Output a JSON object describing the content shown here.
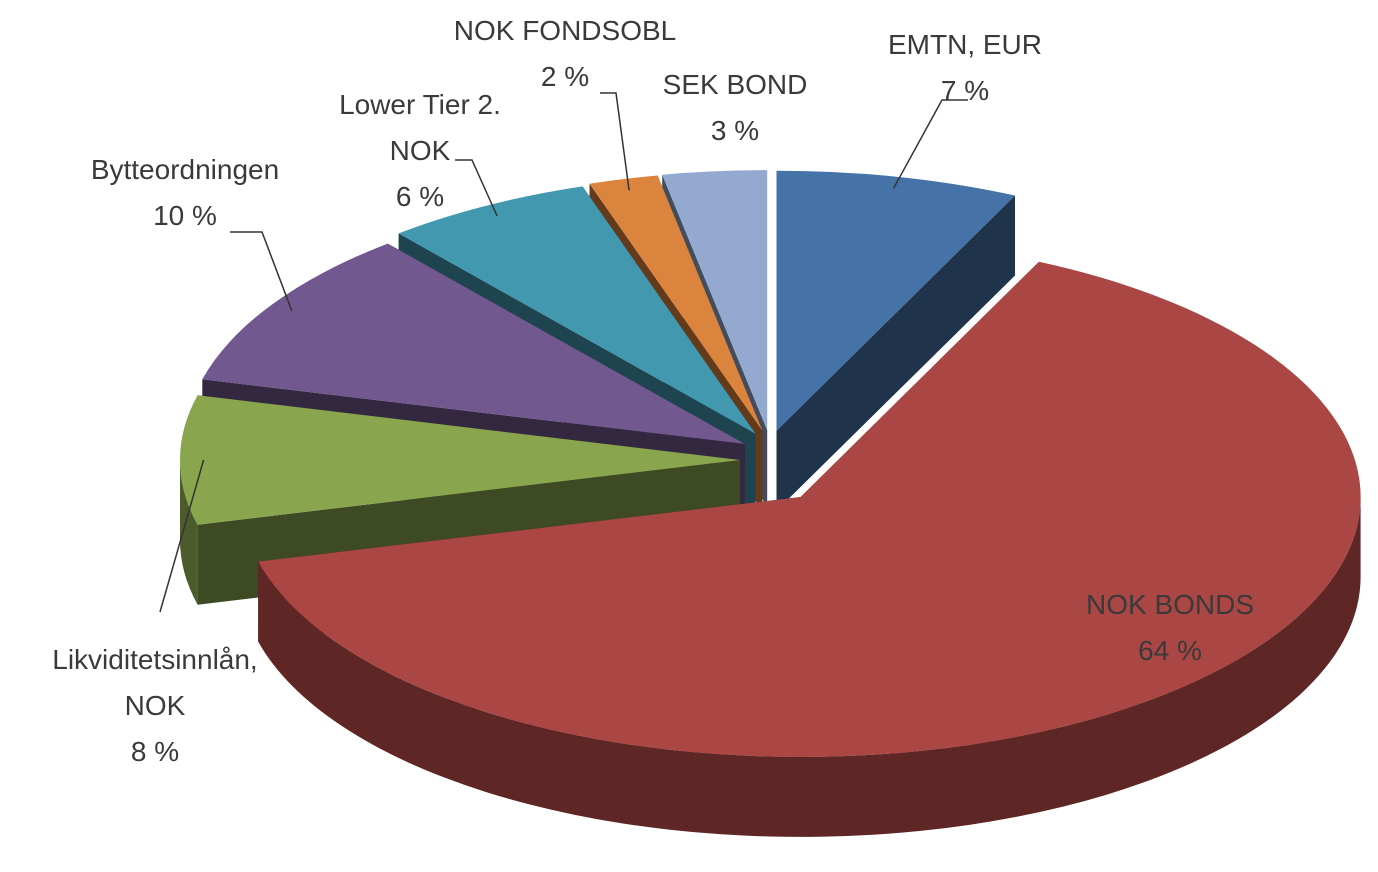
{
  "chart_data": {
    "type": "pie",
    "categories": [
      "EMTN, EUR",
      "NOK BONDS",
      "Likviditetsinnlån, NOK",
      "Bytteordningen",
      "Lower Tier 2. NOK",
      "NOK FONDSOBL",
      "SEK BOND"
    ],
    "values": [
      7,
      64,
      8,
      10,
      6,
      2,
      3
    ],
    "value_labels": [
      "7 %",
      "64 %",
      "8 %",
      "10 %",
      "6 %",
      "2 %",
      "3 %"
    ],
    "colors": [
      "#4573a7",
      "#aa4643",
      "#89a54e",
      "#71588f",
      "#4198af",
      "#db843d",
      "#93a9cf"
    ]
  }
}
